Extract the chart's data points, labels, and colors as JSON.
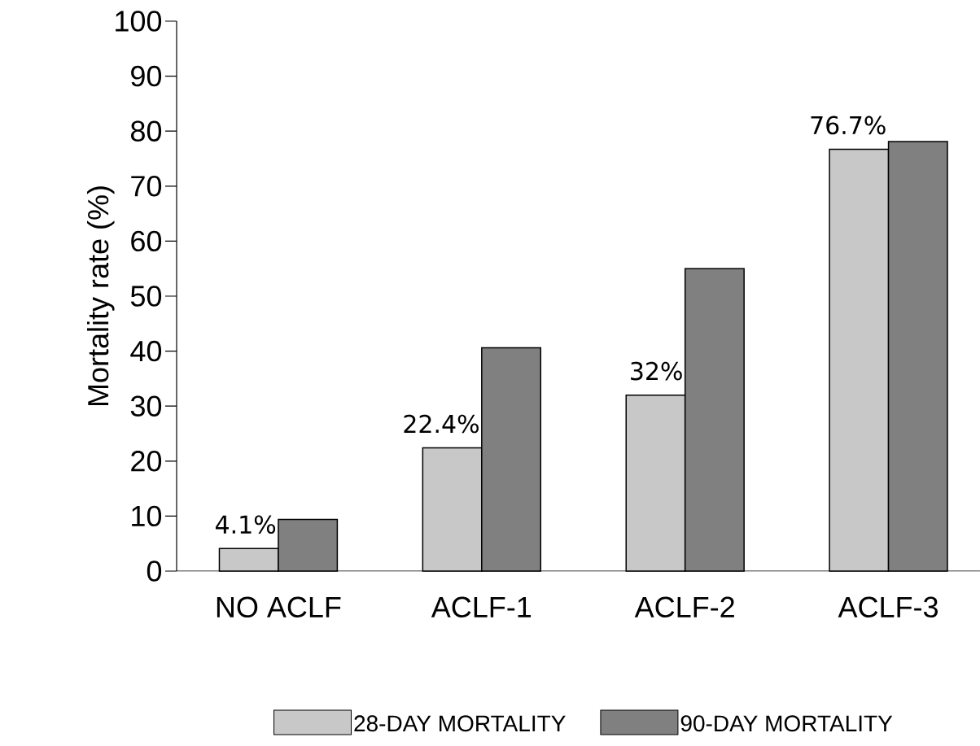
{
  "chart_data": {
    "type": "bar",
    "ylabel": "Mortality rate (%)",
    "categories": [
      "NO ACLF",
      "ACLF-1",
      "ACLF-2",
      "ACLF-3"
    ],
    "series": [
      {
        "name": "28-DAY MORTALITY",
        "color": "#c8c8c8",
        "values": [
          4.1,
          22.4,
          32,
          76.7
        ],
        "value_labels": [
          "4.1%",
          "22.4%",
          "32%",
          "76.7%"
        ]
      },
      {
        "name": "90-DAY MORTALITY",
        "color": "#808080",
        "values": [
          9.4,
          40.6,
          55.0,
          78.1
        ]
      }
    ],
    "ylim": [
      0,
      100
    ],
    "yticks": [
      0,
      10,
      20,
      30,
      40,
      50,
      60,
      70,
      80,
      90,
      100
    ],
    "legend": "bottom"
  }
}
